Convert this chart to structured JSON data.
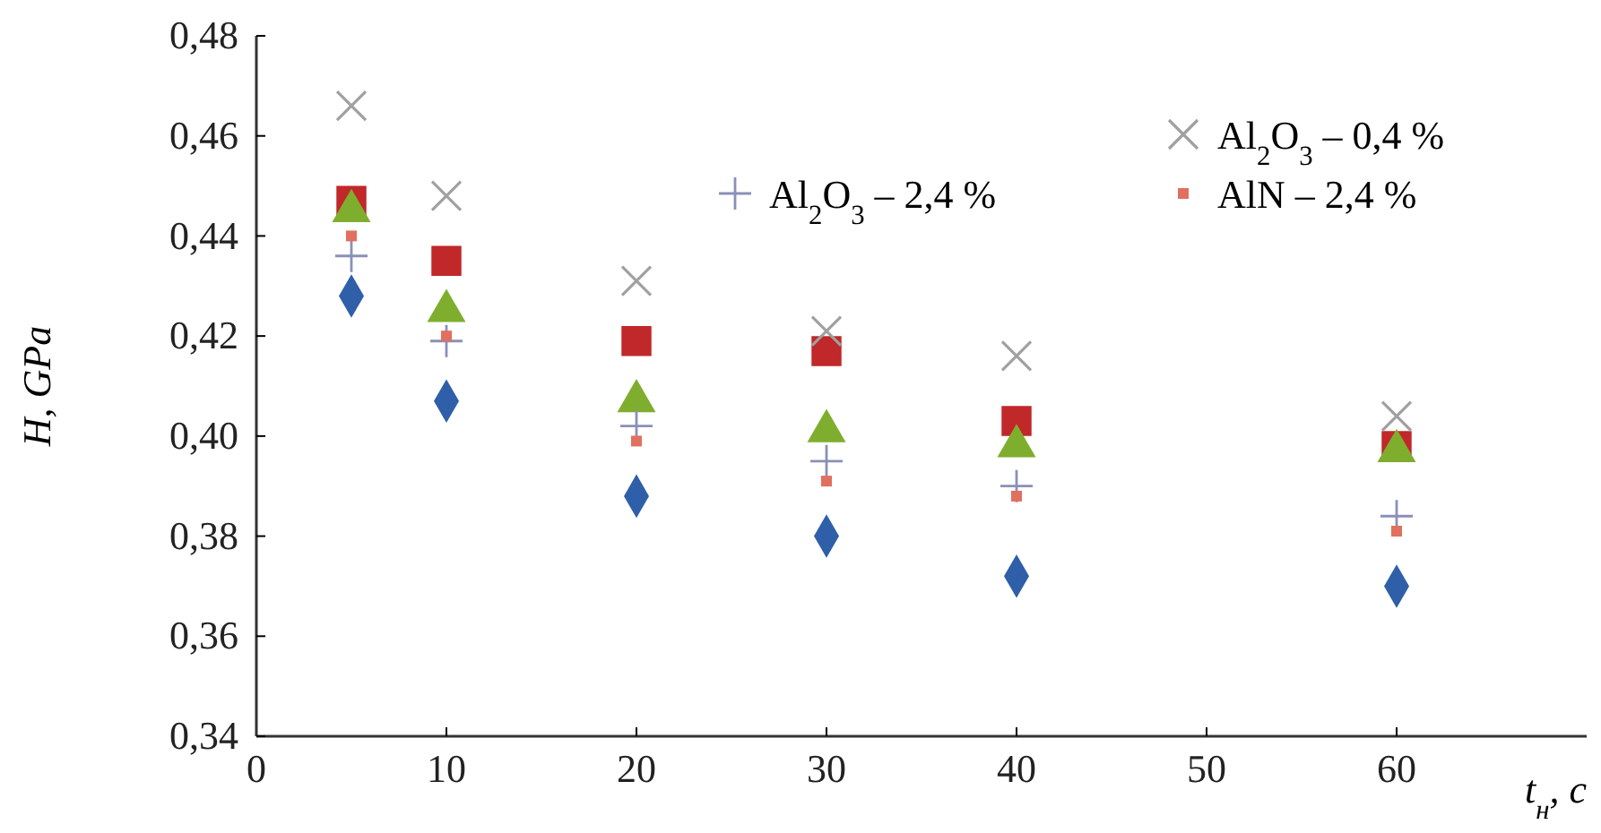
{
  "chart_data": {
    "type": "scatter",
    "xlabel": "t$_{н}$, с",
    "ylabel": "H, GPa",
    "xlim": [
      0,
      70
    ],
    "xticks": [
      0,
      10,
      20,
      30,
      40,
      50,
      60
    ],
    "ylim": [
      0.34,
      0.48
    ],
    "yticks": [
      {
        "value": 0.34,
        "label": "0,34"
      },
      {
        "value": 0.36,
        "label": "0,36"
      },
      {
        "value": 0.38,
        "label": "0,38"
      },
      {
        "value": 0.4,
        "label": "0,40"
      },
      {
        "value": 0.42,
        "label": "0,42"
      },
      {
        "value": 0.44,
        "label": "0,44"
      },
      {
        "value": 0.46,
        "label": "0,46"
      },
      {
        "value": 0.48,
        "label": "0,48"
      }
    ],
    "grid": false,
    "legend": "top right",
    "x": [
      5,
      10,
      20,
      30,
      40,
      60
    ],
    "series": [
      {
        "color": "#2f5fa8",
        "marker": "diamond",
        "values": [
          0.428,
          0.407,
          0.388,
          0.38,
          0.372,
          0.37
        ]
      },
      {
        "color": "#c0282a",
        "marker": "square",
        "values": [
          0.447,
          0.435,
          0.419,
          0.417,
          0.403,
          0.398
        ]
      },
      {
        "color": "#7fae2e",
        "marker": "triangle",
        "values": [
          0.445,
          0.425,
          0.407,
          0.401,
          0.398,
          0.397
        ]
      },
      {
        "name": "Al$_{2}$O$_{3}$ – 0,4 %",
        "color": "#a0a0a0",
        "marker": "cross",
        "values": [
          0.466,
          0.448,
          0.431,
          0.421,
          0.416,
          0.404
        ]
      },
      {
        "name": "Al$_{2}$O$_{3}$ – 2,4 %",
        "color": "#8a90b8",
        "marker": "plus",
        "values": [
          0.436,
          0.419,
          0.402,
          0.395,
          0.39,
          0.384
        ]
      },
      {
        "name": "AlN – 2,4 %",
        "color": "#e07060",
        "marker": "square",
        "values": [
          0.44,
          0.42,
          0.399,
          0.391,
          0.388,
          0.381
        ]
      }
    ]
  }
}
